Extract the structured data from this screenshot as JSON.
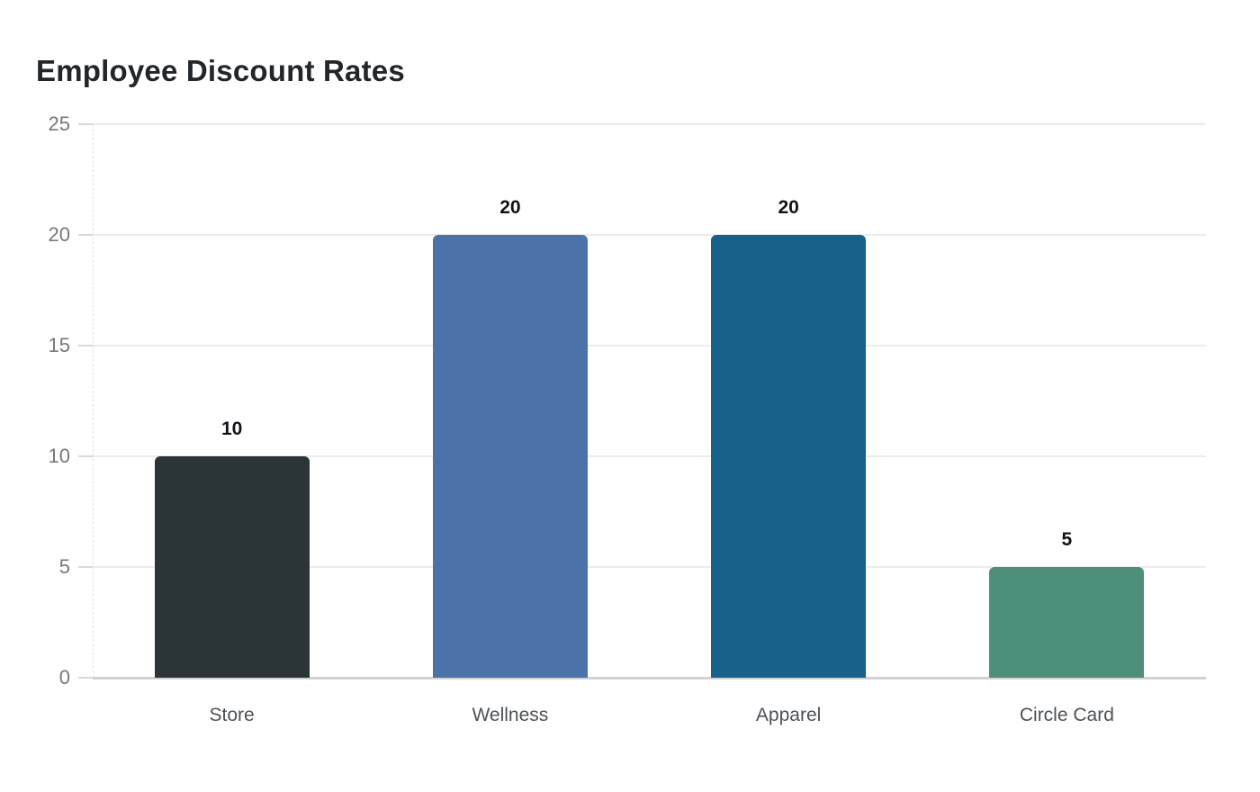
{
  "chart_data": {
    "type": "bar",
    "title": "Employee Discount Rates",
    "categories": [
      "Store",
      "Wellness",
      "Apparel",
      "Circle Card"
    ],
    "values": [
      10,
      20,
      20,
      5
    ],
    "bar_colors": [
      "#2b3437",
      "#4b73aa",
      "#17618a",
      "#4e8f7c"
    ],
    "value_labels": [
      "10",
      "20",
      "20",
      "5"
    ],
    "xlabel": "",
    "ylabel": "",
    "ylim": [
      0,
      25
    ],
    "yticks": [
      0,
      5,
      10,
      15,
      20,
      25
    ],
    "grid": "horizontal",
    "legend": "none"
  },
  "colors": {
    "title_text": "#21262b",
    "ytick_text": "#75787c",
    "xtick_text": "#4c5257",
    "value_text": "#101418",
    "gridline": "#ececec",
    "baseline": "#d2d2d2",
    "background": "#ffffff"
  }
}
